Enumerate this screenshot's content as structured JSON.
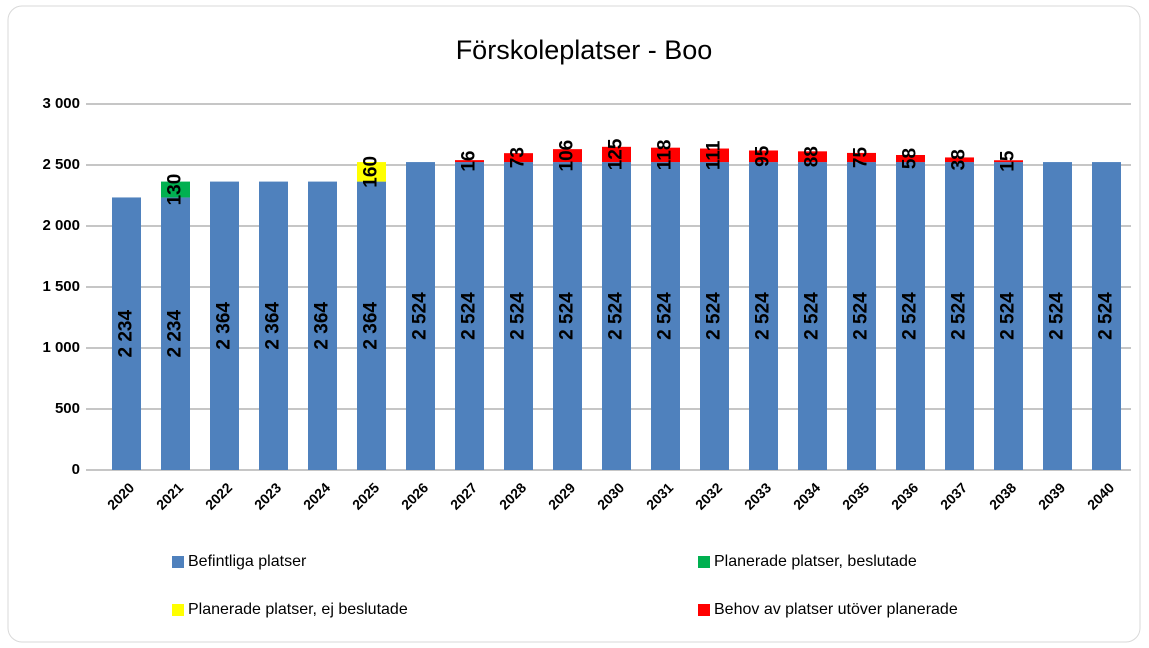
{
  "chart_data": {
    "type": "stacked_bar",
    "title": "Förskoleplatser - Boo",
    "categories": [
      "2020",
      "2021",
      "2022",
      "2023",
      "2024",
      "2025",
      "2026",
      "2027",
      "2028",
      "2029",
      "2030",
      "2031",
      "2032",
      "2033",
      "2034",
      "2035",
      "2036",
      "2037",
      "2038",
      "2039",
      "2040"
    ],
    "series": [
      {
        "name": "Befintliga platser",
        "color": "#4f81bd",
        "values": [
          2234,
          2234,
          2364,
          2364,
          2364,
          2364,
          2524,
          2524,
          2524,
          2524,
          2524,
          2524,
          2524,
          2524,
          2524,
          2524,
          2524,
          2524,
          2524,
          2524,
          2524
        ],
        "value_labels": [
          "2 234",
          "2 234",
          "2 364",
          "2 364",
          "2 364",
          "2 364",
          "2 524",
          "2 524",
          "2 524",
          "2 524",
          "2 524",
          "2 524",
          "2 524",
          "2 524",
          "2 524",
          "2 524",
          "2 524",
          "2 524",
          "2 524",
          "2 524",
          "2 524"
        ]
      },
      {
        "name": "Planerade platser, beslutade",
        "color": "#00b050",
        "values": [
          null,
          130,
          null,
          null,
          null,
          null,
          null,
          null,
          null,
          null,
          null,
          null,
          null,
          null,
          null,
          null,
          null,
          null,
          null,
          null,
          null
        ]
      },
      {
        "name": "Planerade platser, ej beslutade",
        "color": "#ffff00",
        "values": [
          null,
          null,
          null,
          null,
          null,
          160,
          null,
          null,
          null,
          null,
          null,
          null,
          null,
          null,
          null,
          null,
          null,
          null,
          null,
          null,
          null
        ]
      },
      {
        "name": "Behov av platser utöver planerade",
        "color": "#ff0000",
        "values": [
          null,
          null,
          null,
          null,
          null,
          null,
          null,
          16,
          73,
          106,
          125,
          118,
          111,
          95,
          88,
          75,
          58,
          38,
          15,
          null,
          null
        ]
      }
    ],
    "ylim": [
      0,
      3000
    ],
    "yticks": [
      0,
      500,
      {
        "value": 1000,
        "label": "1 000"
      },
      {
        "value": 1500,
        "label": "1 500"
      },
      {
        "value": 2000,
        "label": "2 000"
      },
      {
        "value": 2500,
        "label": "2 500"
      },
      {
        "value": 3000,
        "label": "3 000"
      }
    ],
    "grid": true,
    "legend": "bottom"
  }
}
